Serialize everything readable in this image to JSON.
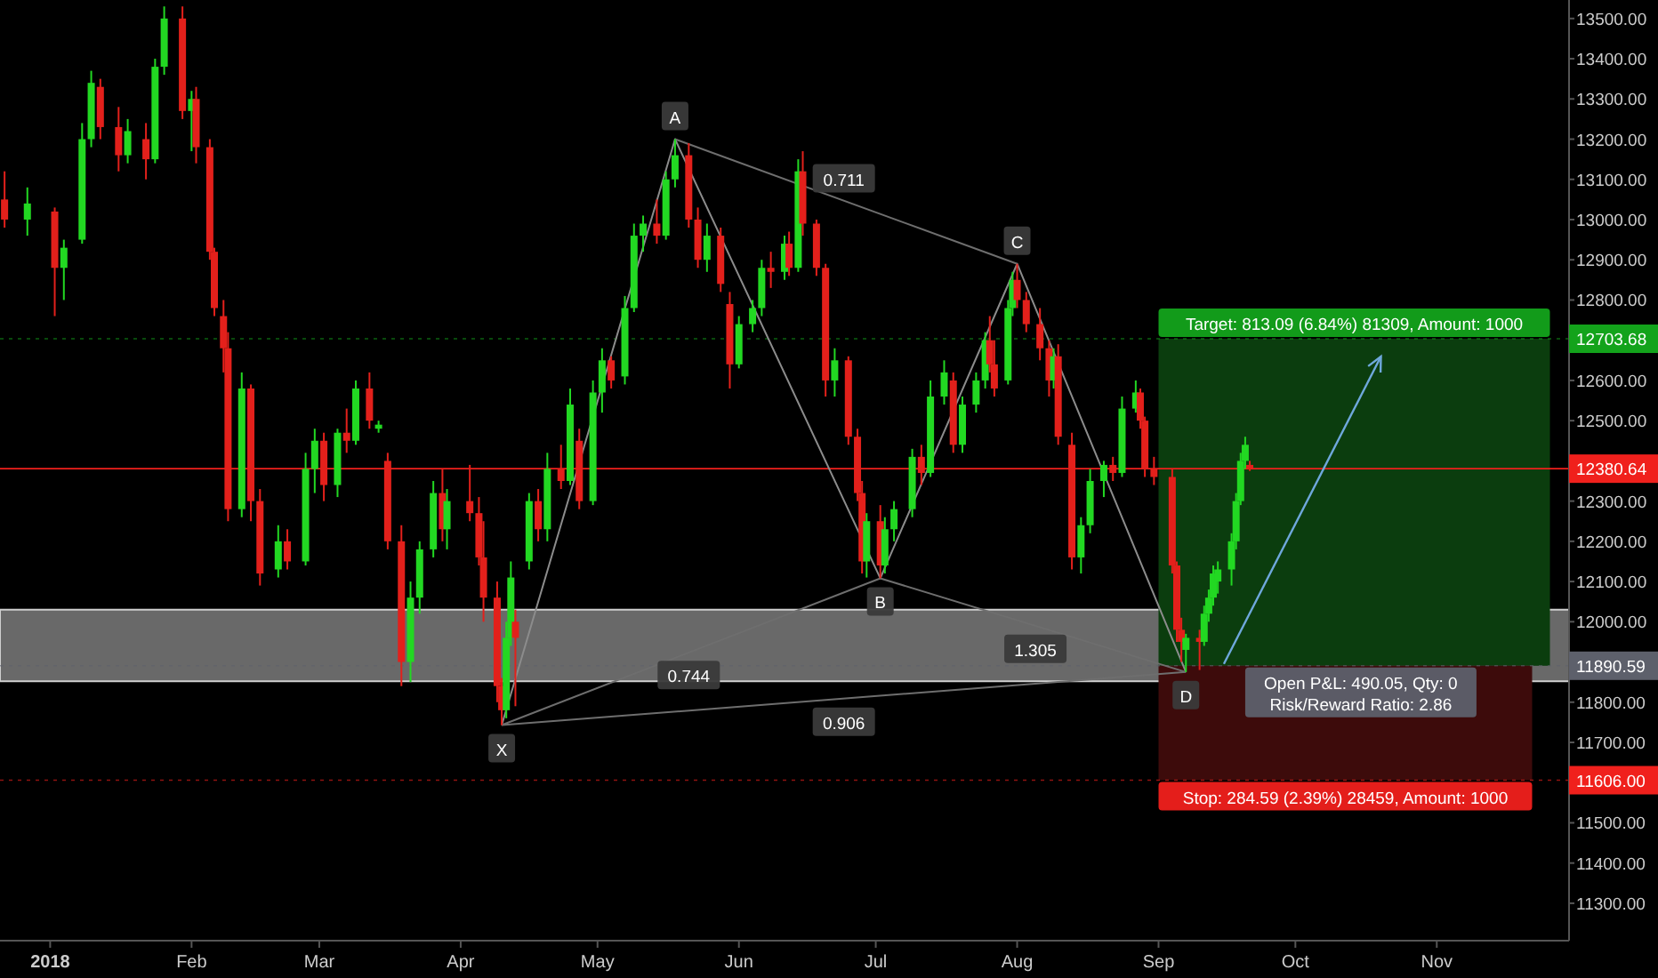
{
  "chart_data": {
    "type": "candlestick",
    "xlim": [
      "2017-12-21",
      "2018-11-30"
    ],
    "xticks": [
      {
        "value": "2018-01-01",
        "label": "2018"
      },
      {
        "value": "2018-02-01",
        "label": "Feb"
      },
      {
        "value": "2018-03-01",
        "label": "Mar"
      },
      {
        "value": "2018-04-01",
        "label": "Apr"
      },
      {
        "value": "2018-05-01",
        "label": "May"
      },
      {
        "value": "2018-06-01",
        "label": "Jun"
      },
      {
        "value": "2018-07-01",
        "label": "Jul"
      },
      {
        "value": "2018-08-01",
        "label": "Aug"
      },
      {
        "value": "2018-09-01",
        "label": "Sep"
      },
      {
        "value": "2018-10-01",
        "label": "Oct"
      },
      {
        "value": "2018-11-01",
        "label": "Nov"
      }
    ],
    "ylim": [
      11207,
      13546
    ],
    "yticks": [
      {
        "value": 13500,
        "label": "13500.00"
      },
      {
        "value": 13400,
        "label": "13400.00"
      },
      {
        "value": 13300,
        "label": "13300.00"
      },
      {
        "value": 13200,
        "label": "13200.00"
      },
      {
        "value": 13100,
        "label": "13100.00"
      },
      {
        "value": 13000,
        "label": "13000.00"
      },
      {
        "value": 12900,
        "label": "12900.00"
      },
      {
        "value": 12800,
        "label": "12800.00"
      },
      {
        "value": 12600,
        "label": "12600.00"
      },
      {
        "value": 12500,
        "label": "12500.00"
      },
      {
        "value": 12300,
        "label": "12300.00"
      },
      {
        "value": 12200,
        "label": "12200.00"
      },
      {
        "value": 12100,
        "label": "12100.00"
      },
      {
        "value": 12000,
        "label": "12000.00"
      },
      {
        "value": 11800,
        "label": "11800.00"
      },
      {
        "value": 11700,
        "label": "11700.00"
      },
      {
        "value": 11500,
        "label": "11500.00"
      },
      {
        "value": 11400,
        "label": "11400.00"
      },
      {
        "value": 11300,
        "label": "11300.00"
      }
    ],
    "series": [
      {
        "type": "line",
        "color": "#8c8c8c",
        "x": [
          "2018-04-10",
          "2018-05-18",
          "2018-07-02",
          "2018-08-01",
          "2018-09-07"
        ],
        "values": [
          11743,
          13200,
          12108,
          12890,
          11875
        ]
      },
      {
        "type": "line",
        "color": "#6e6e6e",
        "x": [
          "2018-04-10",
          "2018-07-02"
        ],
        "values": [
          11743,
          12108
        ]
      },
      {
        "type": "line",
        "color": "#6e6e6e",
        "x": [
          "2018-05-18",
          "2018-08-01"
        ],
        "values": [
          13200,
          12890
        ]
      },
      {
        "type": "line",
        "color": "#6e6e6e",
        "x": [
          "2018-07-02",
          "2018-09-07"
        ],
        "values": [
          12108,
          11875
        ]
      },
      {
        "type": "line",
        "color": "#6e6e6e",
        "x": [
          "2018-04-10",
          "2018-09-07"
        ],
        "values": [
          11743,
          11875
        ]
      },
      {
        "type": "candlestick",
        "x": [
          "2017-12-22",
          "2017-12-27",
          "2018-01-02",
          "2018-01-04",
          "2018-01-08",
          "2018-01-10",
          "2018-01-12",
          "2018-01-16",
          "2018-01-18",
          "2018-01-22",
          "2018-01-24",
          "2018-01-26",
          "2018-01-30",
          "2018-02-01",
          "2018-02-02",
          "2018-02-05",
          "2018-02-06",
          "2018-02-08",
          "2018-02-09",
          "2018-02-12",
          "2018-02-14",
          "2018-02-16",
          "2018-02-20",
          "2018-02-22",
          "2018-02-26",
          "2018-02-28",
          "2018-03-02",
          "2018-03-05",
          "2018-03-07",
          "2018-03-09",
          "2018-03-12",
          "2018-03-14",
          "2018-03-16",
          "2018-03-19",
          "2018-03-21",
          "2018-03-23",
          "2018-03-26",
          "2018-03-28",
          "2018-03-29",
          "2018-04-03",
          "2018-04-05",
          "2018-04-06",
          "2018-04-09",
          "2018-04-10",
          "2018-04-11",
          "2018-04-12",
          "2018-04-13",
          "2018-04-16",
          "2018-04-18",
          "2018-04-20",
          "2018-04-23",
          "2018-04-25",
          "2018-04-27",
          "2018-04-30",
          "2018-05-02",
          "2018-05-04",
          "2018-05-07",
          "2018-05-09",
          "2018-05-11",
          "2018-05-14",
          "2018-05-16",
          "2018-05-18",
          "2018-05-21",
          "2018-05-23",
          "2018-05-25",
          "2018-05-28",
          "2018-05-30",
          "2018-06-01",
          "2018-06-04",
          "2018-06-06",
          "2018-06-08",
          "2018-06-11",
          "2018-06-12",
          "2018-06-14",
          "2018-06-15",
          "2018-06-18",
          "2018-06-20",
          "2018-06-22",
          "2018-06-25",
          "2018-06-27",
          "2018-06-28",
          "2018-06-29",
          "2018-07-02",
          "2018-07-03",
          "2018-07-05",
          "2018-07-09",
          "2018-07-11",
          "2018-07-13",
          "2018-07-16",
          "2018-07-18",
          "2018-07-20",
          "2018-07-23",
          "2018-07-25",
          "2018-07-26",
          "2018-07-27",
          "2018-07-30",
          "2018-07-31",
          "2018-08-01",
          "2018-08-03",
          "2018-08-06",
          "2018-08-08",
          "2018-08-09",
          "2018-08-10",
          "2018-08-13",
          "2018-08-15",
          "2018-08-17",
          "2018-08-20",
          "2018-08-22",
          "2018-08-24",
          "2018-08-27",
          "2018-08-28",
          "2018-08-29",
          "2018-08-31",
          "2018-09-04",
          "2018-09-05",
          "2018-09-06",
          "2018-09-07",
          "2018-09-10",
          "2018-09-11",
          "2018-09-12",
          "2018-09-13",
          "2018-09-14",
          "2018-09-17",
          "2018-09-18",
          "2018-09-19",
          "2018-09-20",
          "2018-09-21"
        ],
        "ohlc": [
          [
            13050,
            13120,
            12980,
            13000
          ],
          [
            13000,
            13080,
            12960,
            13040
          ],
          [
            13020,
            13030,
            12760,
            12880
          ],
          [
            12880,
            12950,
            12800,
            12930
          ],
          [
            12950,
            13240,
            12940,
            13200
          ],
          [
            13200,
            13370,
            13180,
            13340
          ],
          [
            13330,
            13350,
            13200,
            13230
          ],
          [
            13230,
            13280,
            13120,
            13160
          ],
          [
            13160,
            13250,
            13140,
            13220
          ],
          [
            13200,
            13240,
            13100,
            13150
          ],
          [
            13150,
            13400,
            13140,
            13380
          ],
          [
            13380,
            13530,
            13360,
            13500
          ],
          [
            13500,
            13530,
            13250,
            13270
          ],
          [
            13270,
            13320,
            13170,
            13300
          ],
          [
            13300,
            13330,
            13140,
            13180
          ],
          [
            13180,
            13200,
            12900,
            12920
          ],
          [
            12920,
            12930,
            12760,
            12780
          ],
          [
            12760,
            12800,
            12620,
            12680
          ],
          [
            12680,
            12720,
            12250,
            12280
          ],
          [
            12280,
            12620,
            12260,
            12580
          ],
          [
            12580,
            12590,
            12250,
            12300
          ],
          [
            12300,
            12330,
            12090,
            12120
          ],
          [
            12130,
            12240,
            12110,
            12200
          ],
          [
            12200,
            12230,
            12130,
            12150
          ],
          [
            12150,
            12420,
            12140,
            12380
          ],
          [
            12380,
            12480,
            12320,
            12450
          ],
          [
            12450,
            12470,
            12300,
            12340
          ],
          [
            12340,
            12480,
            12310,
            12470
          ],
          [
            12470,
            12530,
            12420,
            12450
          ],
          [
            12450,
            12600,
            12440,
            12580
          ],
          [
            12580,
            12620,
            12480,
            12500
          ],
          [
            12480,
            12500,
            12470,
            12490
          ],
          [
            12400,
            12420,
            12180,
            12200
          ],
          [
            12200,
            12240,
            11840,
            11900
          ],
          [
            11900,
            12100,
            11850,
            12060
          ],
          [
            12060,
            12200,
            12020,
            12180
          ],
          [
            12180,
            12350,
            12160,
            12320
          ],
          [
            12320,
            12380,
            12200,
            12230
          ],
          [
            12230,
            12330,
            12180,
            12300
          ],
          [
            12300,
            12390,
            12250,
            12270
          ],
          [
            12270,
            12310,
            12140,
            12160
          ],
          [
            12160,
            12250,
            12000,
            12060
          ],
          [
            12060,
            12100,
            11800,
            11840
          ],
          [
            11840,
            11860,
            11743,
            11780
          ],
          [
            11780,
            12000,
            11760,
            11960
          ],
          [
            11960,
            12150,
            11940,
            12110
          ],
          [
            12000,
            12030,
            11790,
            11960
          ],
          [
            12150,
            12320,
            12130,
            12300
          ],
          [
            12300,
            12330,
            12200,
            12230
          ],
          [
            12230,
            12420,
            12200,
            12380
          ],
          [
            12380,
            12440,
            12330,
            12350
          ],
          [
            12350,
            12580,
            12340,
            12540
          ],
          [
            12450,
            12480,
            12280,
            12300
          ],
          [
            12300,
            12600,
            12290,
            12570
          ],
          [
            12570,
            12680,
            12520,
            12650
          ],
          [
            12650,
            12660,
            12580,
            12600
          ],
          [
            12610,
            12810,
            12590,
            12780
          ],
          [
            12780,
            12990,
            12770,
            12960
          ],
          [
            12960,
            13010,
            12920,
            12990
          ],
          [
            12990,
            13050,
            12940,
            12960
          ],
          [
            12960,
            13120,
            12950,
            13100
          ],
          [
            13100,
            13200,
            13080,
            13160
          ],
          [
            13160,
            13190,
            12980,
            13000
          ],
          [
            13000,
            13030,
            12880,
            12900
          ],
          [
            12900,
            12990,
            12870,
            12960
          ],
          [
            12960,
            12980,
            12820,
            12840
          ],
          [
            12790,
            12820,
            12580,
            12640
          ],
          [
            12640,
            12760,
            12630,
            12740
          ],
          [
            12740,
            12800,
            12720,
            12780
          ],
          [
            12780,
            12900,
            12760,
            12880
          ],
          [
            12880,
            12920,
            12830,
            12870
          ],
          [
            12870,
            12960,
            12850,
            12940
          ],
          [
            12940,
            12970,
            12860,
            12880
          ],
          [
            12880,
            13150,
            12870,
            13120
          ],
          [
            13120,
            13170,
            12960,
            12990
          ],
          [
            12990,
            13000,
            12860,
            12880
          ],
          [
            12880,
            12890,
            12560,
            12600
          ],
          [
            12600,
            12680,
            12560,
            12650
          ],
          [
            12650,
            12660,
            12440,
            12460
          ],
          [
            12460,
            12480,
            12300,
            12320
          ],
          [
            12320,
            12350,
            12120,
            12150
          ],
          [
            12150,
            12270,
            12110,
            12250
          ],
          [
            12250,
            12290,
            12108,
            12140
          ],
          [
            12140,
            12260,
            12120,
            12230
          ],
          [
            12230,
            12300,
            12200,
            12280
          ],
          [
            12280,
            12430,
            12260,
            12410
          ],
          [
            12410,
            12440,
            12340,
            12370
          ],
          [
            12370,
            12600,
            12360,
            12560
          ],
          [
            12560,
            12650,
            12540,
            12620
          ],
          [
            12600,
            12620,
            12420,
            12440
          ],
          [
            12440,
            12560,
            12420,
            12540
          ],
          [
            12540,
            12620,
            12520,
            12600
          ],
          [
            12600,
            12720,
            12580,
            12700
          ],
          [
            12700,
            12760,
            12620,
            12640
          ],
          [
            12640,
            12700,
            12560,
            12580
          ],
          [
            12600,
            12800,
            12590,
            12780
          ],
          [
            12780,
            12870,
            12760,
            12850
          ],
          [
            12850,
            12890,
            12780,
            12800
          ],
          [
            12800,
            12820,
            12720,
            12740
          ],
          [
            12740,
            12780,
            12650,
            12680
          ],
          [
            12680,
            12700,
            12560,
            12600
          ],
          [
            12600,
            12680,
            12580,
            12660
          ],
          [
            12660,
            12690,
            12440,
            12460
          ],
          [
            12440,
            12470,
            12130,
            12160
          ],
          [
            12160,
            12260,
            12120,
            12240
          ],
          [
            12240,
            12380,
            12220,
            12350
          ],
          [
            12350,
            12400,
            12310,
            12390
          ],
          [
            12390,
            12410,
            12350,
            12370
          ],
          [
            12370,
            12560,
            12360,
            12530
          ],
          [
            12530,
            12600,
            12520,
            12570
          ],
          [
            12570,
            12580,
            12480,
            12500
          ],
          [
            12500,
            12510,
            12360,
            12380
          ],
          [
            12380,
            12410,
            12340,
            12360
          ],
          [
            12360,
            12380,
            12120,
            12140
          ],
          [
            12140,
            12150,
            11950,
            11980
          ],
          [
            11980,
            12010,
            11900,
            11950
          ],
          [
            11930,
            11970,
            11875,
            11960
          ],
          [
            11960,
            11980,
            11880,
            11950
          ],
          [
            11950,
            12040,
            11940,
            12020
          ],
          [
            12020,
            12080,
            12000,
            12060
          ],
          [
            12060,
            12140,
            12040,
            12120
          ],
          [
            12100,
            12150,
            12070,
            12130
          ],
          [
            12130,
            12220,
            12090,
            12200
          ],
          [
            12200,
            12320,
            12180,
            12300
          ],
          [
            12300,
            12420,
            12290,
            12400
          ],
          [
            12400,
            12460,
            12380,
            12440
          ],
          [
            12390,
            12400,
            12375,
            12380.64
          ]
        ],
        "colors": [
          "#e3201b",
          "#22d822",
          "#e3201b",
          "#22d822",
          "#22d822",
          "#22d822",
          "#e3201b",
          "#e3201b",
          "#22d822",
          "#e3201b",
          "#22d822",
          "#22d822",
          "#e3201b",
          "#22d822",
          "#e3201b",
          "#e3201b",
          "#e3201b",
          "#e3201b",
          "#e3201b",
          "#22d822",
          "#e3201b",
          "#e3201b",
          "#22d822",
          "#e3201b",
          "#22d822",
          "#22d822",
          "#e3201b",
          "#22d822",
          "#e3201b",
          "#22d822",
          "#e3201b",
          "#22d822",
          "#e3201b",
          "#e3201b",
          "#22d822",
          "#22d822",
          "#22d822",
          "#e3201b",
          "#22d822",
          "#e3201b",
          "#e3201b",
          "#e3201b",
          "#e3201b",
          "#e3201b",
          "#22d822",
          "#22d822",
          "#e3201b",
          "#22d822",
          "#e3201b",
          "#22d822",
          "#e3201b",
          "#22d822",
          "#e3201b",
          "#22d822",
          "#22d822",
          "#e3201b",
          "#22d822",
          "#22d822",
          "#22d822",
          "#e3201b",
          "#22d822",
          "#22d822",
          "#e3201b",
          "#e3201b",
          "#22d822",
          "#e3201b",
          "#e3201b",
          "#22d822",
          "#22d822",
          "#22d822",
          "#e3201b",
          "#22d822",
          "#e3201b",
          "#22d822",
          "#e3201b",
          "#e3201b",
          "#e3201b",
          "#22d822",
          "#e3201b",
          "#e3201b",
          "#e3201b",
          "#22d822",
          "#e3201b",
          "#22d822",
          "#22d822",
          "#22d822",
          "#e3201b",
          "#22d822",
          "#22d822",
          "#e3201b",
          "#22d822",
          "#22d822",
          "#22d822",
          "#e3201b",
          "#e3201b",
          "#22d822",
          "#22d822",
          "#e3201b",
          "#e3201b",
          "#e3201b",
          "#e3201b",
          "#22d822",
          "#e3201b",
          "#e3201b",
          "#22d822",
          "#22d822",
          "#22d822",
          "#e3201b",
          "#22d822",
          "#22d822",
          "#e3201b",
          "#e3201b",
          "#e3201b",
          "#e3201b",
          "#e3201b",
          "#e3201b",
          "#22d822",
          "#e3201b",
          "#22d822",
          "#22d822",
          "#22d822",
          "#22d822",
          "#22d822",
          "#22d822",
          "#22d822",
          "#22d822",
          "#e3201b"
        ]
      }
    ],
    "bands": [
      {
        "axis": "y",
        "from": 11852,
        "to": 12030,
        "color": "#8c8c8c"
      },
      {
        "axis": "y",
        "from": 11890.59,
        "to": 12703.68,
        "color": "#0b3d0e"
      },
      {
        "axis": "y",
        "from": 11606,
        "to": 11890.59,
        "color": "#3d0b0b"
      }
    ],
    "ref_lines": [
      {
        "axis": "y",
        "value": 12380.64,
        "label": "12380.64",
        "color": "#f0201c",
        "line_style": "solid"
      },
      {
        "axis": "y",
        "value": 12703.68,
        "label": "12703.68",
        "color": "#13a31b",
        "line_style": "dotted"
      },
      {
        "axis": "y",
        "value": 11890.59,
        "label": "11890.59",
        "color": "#5d606b",
        "line_style": "dotted"
      },
      {
        "axis": "y",
        "value": 11606,
        "label": "11606.00",
        "color": "#f0201c",
        "line_style": "dotted"
      }
    ],
    "annotations": [
      {
        "text": "X",
        "x": "2018-04-10",
        "y": 11743
      },
      {
        "text": "A",
        "x": "2018-05-18",
        "y": 13200
      },
      {
        "text": "B",
        "x": "2018-07-02",
        "y": 12108
      },
      {
        "text": "C",
        "x": "2018-08-01",
        "y": 12890
      },
      {
        "text": "D",
        "x": "2018-09-07",
        "y": 11875
      },
      {
        "text": "0.711",
        "x": "2018-06-24",
        "y": 13045
      },
      {
        "text": "0.744",
        "x": "2018-05-21",
        "y": 11925
      },
      {
        "text": "1.305",
        "x": "2018-08-05",
        "y": 11990
      },
      {
        "text": "0.906",
        "x": "2018-06-24",
        "y": 11809
      },
      {
        "text": "Target: 813.09 (6.84%) 81309, Amount: 1000",
        "x": "2018-09-01",
        "y": 12703.68
      },
      {
        "text": "Stop: 284.59 (2.39%) 28459, Amount: 1000",
        "x": "2018-09-01",
        "y": 11606
      },
      {
        "text": "Open P&L: 490.05, Qty: 0\nRisk/Reward Ratio: 2.86",
        "x": "2018-09-20",
        "y": 11890.59
      }
    ]
  }
}
